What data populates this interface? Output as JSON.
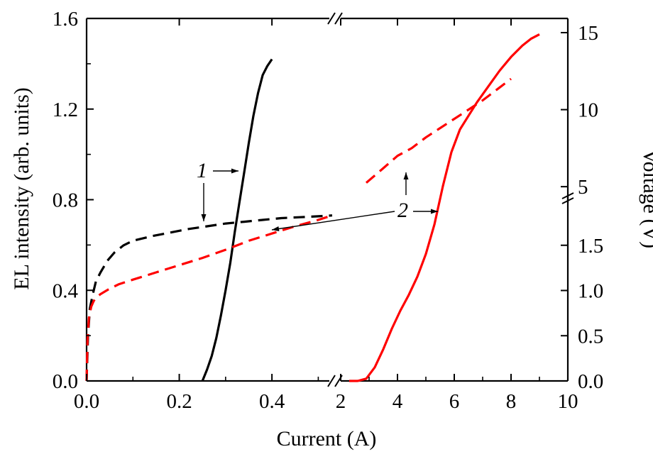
{
  "chart_data": {
    "type": "line",
    "xlabel": "Current (A)",
    "ylabel_left": "EL intensity (arb. units)",
    "ylabel_right": "Voltage (V)",
    "x_axis": {
      "broken": true,
      "left_segment": {
        "range": [
          0,
          0.53
        ],
        "ticks": [
          "0.0",
          "0.2",
          "0.4"
        ],
        "tick_values": [
          0,
          0.2,
          0.4
        ]
      },
      "right_segment": {
        "range": [
          1.9,
          10
        ],
        "ticks": [
          "2",
          "4",
          "6",
          "8",
          "10"
        ],
        "tick_values": [
          2,
          4,
          6,
          8,
          10
        ]
      }
    },
    "y_left": {
      "range": [
        0,
        1.6
      ],
      "ticks": [
        "0.0",
        "0.4",
        "0.8",
        "1.2",
        "1.6"
      ],
      "tick_values": [
        0,
        0.4,
        0.8,
        1.2,
        1.6
      ]
    },
    "y_right": {
      "broken": true,
      "lower_segment": {
        "range": [
          0,
          2.0
        ],
        "ticks": [
          "0.0",
          "0.5",
          "1.0",
          "1.5"
        ],
        "tick_values": [
          0,
          0.5,
          1.0,
          1.5
        ]
      },
      "upper_segment": {
        "range": [
          4.5,
          15
        ],
        "ticks": [
          "5",
          "10",
          "15"
        ],
        "tick_values": [
          5,
          10,
          15
        ]
      }
    },
    "series": [
      {
        "label": "1",
        "style": "solid",
        "color": "#000000",
        "axis": "left",
        "x": [
          0.25,
          0.26,
          0.27,
          0.28,
          0.29,
          0.3,
          0.31,
          0.32,
          0.33,
          0.34,
          0.35,
          0.36,
          0.37,
          0.38,
          0.39,
          0.4
        ],
        "y": [
          0.0,
          0.05,
          0.11,
          0.19,
          0.29,
          0.4,
          0.52,
          0.66,
          0.79,
          0.92,
          1.05,
          1.17,
          1.27,
          1.35,
          1.39,
          1.42
        ]
      },
      {
        "label": "1",
        "style": "dashed",
        "color": "#000000",
        "axis": "right",
        "x": [
          0.0,
          0.003,
          0.007,
          0.013,
          0.02,
          0.03,
          0.045,
          0.06,
          0.08,
          0.1,
          0.14,
          0.18,
          0.22,
          0.26,
          0.3,
          0.34,
          0.38,
          0.42,
          0.46,
          0.5,
          0.53
        ],
        "y": [
          0.0,
          0.5,
          0.8,
          0.95,
          1.1,
          1.2,
          1.33,
          1.42,
          1.5,
          1.55,
          1.6,
          1.64,
          1.68,
          1.71,
          1.74,
          1.76,
          1.78,
          1.8,
          1.81,
          1.82,
          1.83
        ]
      },
      {
        "label": "2",
        "style": "solid",
        "color": "#ff0000",
        "axis": "left",
        "x": [
          2.3,
          2.6,
          2.9,
          3.2,
          3.5,
          3.8,
          4.1,
          4.4,
          4.7,
          5.0,
          5.3,
          5.6,
          5.9,
          6.2,
          6.5,
          6.8,
          7.2,
          7.6,
          8.0,
          8.4,
          8.7,
          9.0
        ],
        "y": [
          0.0,
          0.0,
          0.01,
          0.06,
          0.14,
          0.23,
          0.31,
          0.38,
          0.46,
          0.56,
          0.69,
          0.86,
          1.01,
          1.11,
          1.17,
          1.23,
          1.3,
          1.37,
          1.43,
          1.48,
          1.51,
          1.53
        ]
      },
      {
        "label": "2",
        "style": "dashed",
        "color": "#ff0000",
        "axis": "right",
        "x": [
          0.0,
          0.002,
          0.005,
          0.01,
          0.015,
          0.02,
          0.03,
          0.05,
          0.07,
          0.1,
          0.15,
          0.2,
          0.25,
          0.3,
          0.35,
          0.4,
          0.45,
          0.5,
          0.53,
          2.9,
          3.5,
          4.0,
          4.5,
          5.0,
          5.5,
          6.0,
          6.5,
          7.0,
          7.5,
          8.0
        ],
        "y": [
          0.0,
          0.45,
          0.7,
          0.82,
          0.88,
          0.92,
          0.96,
          1.02,
          1.07,
          1.12,
          1.2,
          1.28,
          1.36,
          1.45,
          1.55,
          1.63,
          1.71,
          1.78,
          1.83,
          5.25,
          6.2,
          7.0,
          7.5,
          8.2,
          8.8,
          9.4,
          10.0,
          10.6,
          11.3,
          12.0
        ]
      }
    ],
    "annotations": [
      {
        "text": "1"
      },
      {
        "text": "2"
      }
    ]
  }
}
